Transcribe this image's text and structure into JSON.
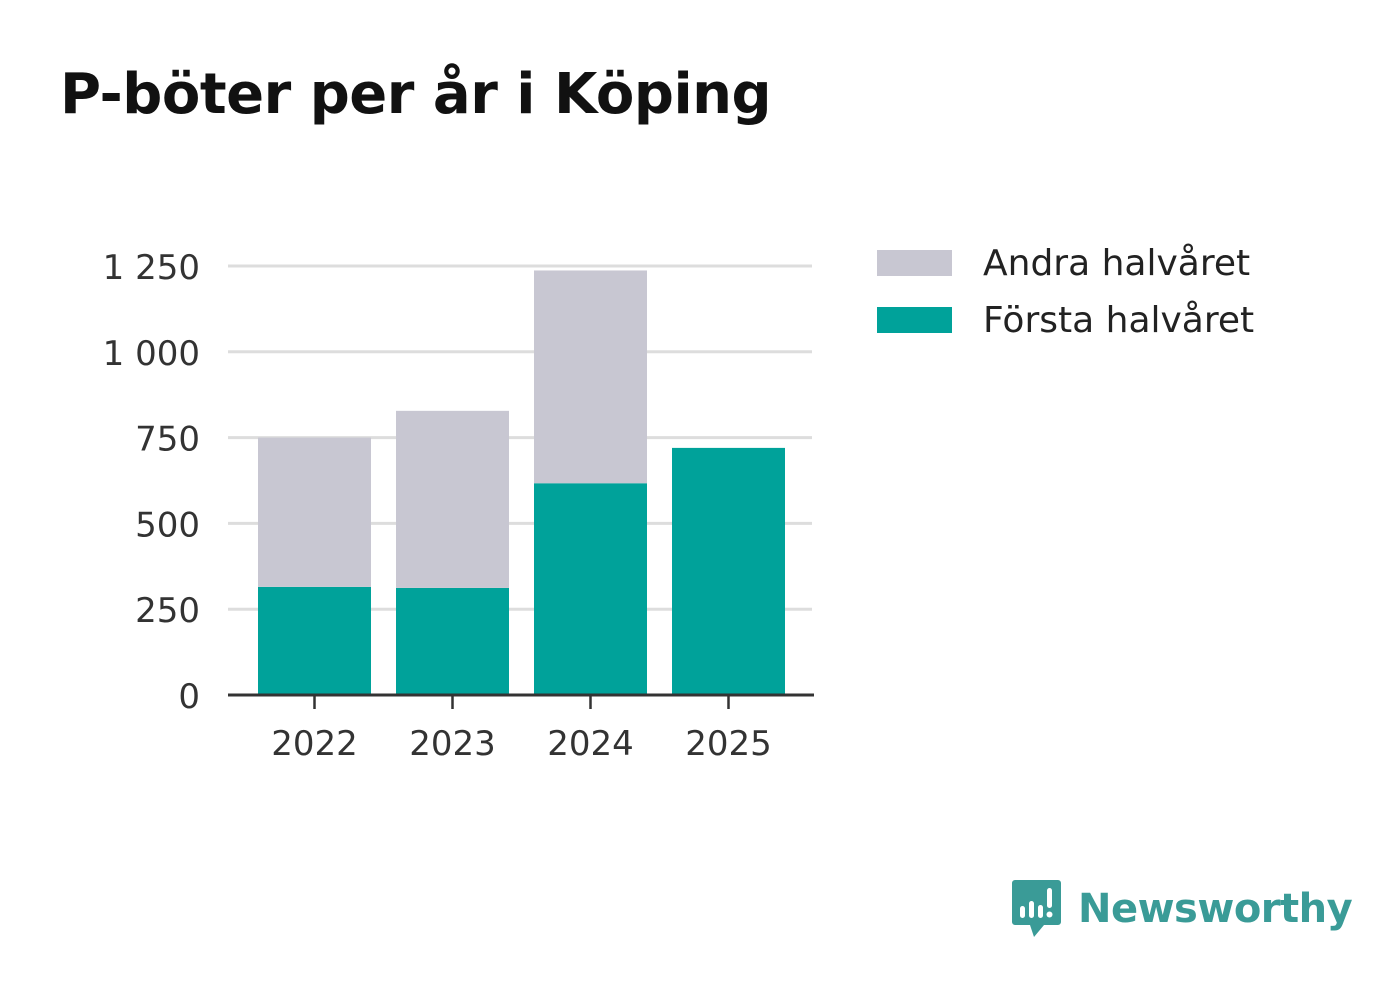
{
  "chart_data": {
    "type": "bar",
    "stacked": true,
    "title": "P-böter per år i Köping",
    "xlabel": "",
    "ylabel": "",
    "categories": [
      "2022",
      "2023",
      "2024",
      "2025"
    ],
    "series": [
      {
        "name": "Första halvåret",
        "color": "#00a29a",
        "values": [
          315,
          312,
          617,
          720
        ]
      },
      {
        "name": "Andra halvåret",
        "color": "#c8c7d2",
        "values": [
          435,
          516,
          620,
          0
        ]
      }
    ],
    "legend_order": [
      "Andra halvåret",
      "Första halvåret"
    ],
    "ylim": [
      0,
      1250
    ],
    "yticks": [
      0,
      250,
      500,
      750,
      1000,
      1250
    ],
    "ytick_labels": [
      "0",
      "250",
      "500",
      "750",
      "1 000",
      "1 250"
    ],
    "grid": true,
    "legend_position": "right"
  },
  "brand": {
    "name": "Newsworthy",
    "color": "#3a9b97"
  }
}
